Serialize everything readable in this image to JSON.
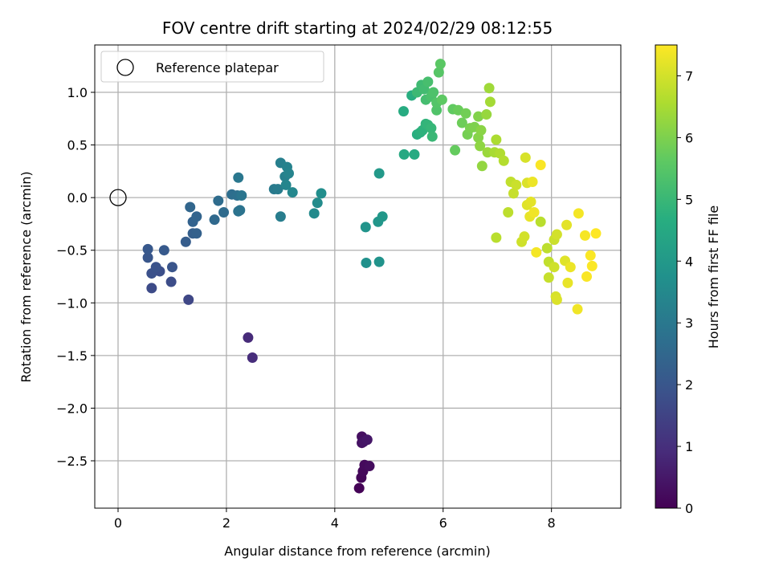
{
  "chart_data": {
    "type": "scatter",
    "title": "FOV centre drift starting at 2024/02/29 08:12:55",
    "xlabel": "Angular distance from reference (arcmin)",
    "ylabel": "Rotation from reference (arcmin)",
    "xlim": [
      -0.43,
      9.28
    ],
    "ylim": [
      -2.95,
      1.45
    ],
    "xticks": [
      0,
      2,
      4,
      6,
      8
    ],
    "xtick_labels": [
      "0",
      "2",
      "4",
      "6",
      "8"
    ],
    "yticks": [
      -2.5,
      -2.0,
      -1.5,
      -1.0,
      -0.5,
      0.0,
      0.5,
      1.0
    ],
    "ytick_labels": [
      "−2.5",
      "−2.0",
      "−1.5",
      "−1.0",
      "−0.5",
      "0.0",
      "0.5",
      "1.0"
    ],
    "grid": true,
    "legend": {
      "placement": "upper-left",
      "entries": [
        "Reference platepar"
      ]
    },
    "reference_point": {
      "x": 0,
      "y": 0,
      "marker": "open-circle",
      "color": "#000000"
    },
    "colorbar": {
      "label": "Hours from first FF file",
      "min": 0,
      "max": 7.5,
      "ticks": [
        0,
        1,
        2,
        3,
        4,
        5,
        6,
        7
      ],
      "tick_labels": [
        "0",
        "1",
        "2",
        "3",
        "4",
        "5",
        "6",
        "7"
      ],
      "colormap": "viridis"
    },
    "points": [
      {
        "x": 4.45,
        "y": -2.76,
        "c": 0.05
      },
      {
        "x": 4.49,
        "y": -2.66,
        "c": 0.1
      },
      {
        "x": 4.52,
        "y": -2.6,
        "c": 0.15
      },
      {
        "x": 4.55,
        "y": -2.54,
        "c": 0.2
      },
      {
        "x": 4.64,
        "y": -2.55,
        "c": 0.25
      },
      {
        "x": 4.5,
        "y": -2.27,
        "c": 0.3
      },
      {
        "x": 4.5,
        "y": -2.33,
        "c": 0.35
      },
      {
        "x": 4.53,
        "y": -2.32,
        "c": 0.4
      },
      {
        "x": 4.6,
        "y": -2.3,
        "c": 0.45
      },
      {
        "x": 2.4,
        "y": -1.33,
        "c": 0.9
      },
      {
        "x": 2.48,
        "y": -1.52,
        "c": 0.95
      },
      {
        "x": 1.3,
        "y": -0.97,
        "c": 1.6
      },
      {
        "x": 0.62,
        "y": -0.86,
        "c": 1.7
      },
      {
        "x": 0.98,
        "y": -0.8,
        "c": 1.75
      },
      {
        "x": 0.77,
        "y": -0.7,
        "c": 1.8
      },
      {
        "x": 0.62,
        "y": -0.72,
        "c": 1.85
      },
      {
        "x": 0.7,
        "y": -0.66,
        "c": 1.9
      },
      {
        "x": 1.0,
        "y": -0.66,
        "c": 1.95
      },
      {
        "x": 0.55,
        "y": -0.57,
        "c": 2.0
      },
      {
        "x": 0.55,
        "y": -0.49,
        "c": 2.05
      },
      {
        "x": 0.85,
        "y": -0.5,
        "c": 2.1
      },
      {
        "x": 1.25,
        "y": -0.42,
        "c": 2.2
      },
      {
        "x": 1.38,
        "y": -0.34,
        "c": 2.25
      },
      {
        "x": 1.45,
        "y": -0.34,
        "c": 2.3
      },
      {
        "x": 1.38,
        "y": -0.23,
        "c": 2.35
      },
      {
        "x": 1.45,
        "y": -0.18,
        "c": 2.4
      },
      {
        "x": 1.33,
        "y": -0.09,
        "c": 2.45
      },
      {
        "x": 1.78,
        "y": -0.21,
        "c": 2.55
      },
      {
        "x": 1.95,
        "y": -0.14,
        "c": 2.6
      },
      {
        "x": 1.85,
        "y": -0.03,
        "c": 2.65
      },
      {
        "x": 2.1,
        "y": 0.03,
        "c": 2.7
      },
      {
        "x": 2.2,
        "y": 0.02,
        "c": 2.75
      },
      {
        "x": 2.22,
        "y": -0.13,
        "c": 2.8
      },
      {
        "x": 2.25,
        "y": -0.12,
        "c": 2.85
      },
      {
        "x": 2.28,
        "y": 0.02,
        "c": 2.9
      },
      {
        "x": 2.22,
        "y": 0.19,
        "c": 2.95
      },
      {
        "x": 2.88,
        "y": 0.08,
        "c": 3.05
      },
      {
        "x": 2.95,
        "y": 0.08,
        "c": 3.1
      },
      {
        "x": 3.0,
        "y": -0.18,
        "c": 3.15
      },
      {
        "x": 3.0,
        "y": 0.33,
        "c": 3.2
      },
      {
        "x": 3.08,
        "y": 0.2,
        "c": 3.25
      },
      {
        "x": 3.12,
        "y": 0.29,
        "c": 3.3
      },
      {
        "x": 3.15,
        "y": 0.23,
        "c": 3.35
      },
      {
        "x": 3.1,
        "y": 0.12,
        "c": 3.4
      },
      {
        "x": 3.22,
        "y": 0.05,
        "c": 3.45
      },
      {
        "x": 3.62,
        "y": -0.15,
        "c": 3.55
      },
      {
        "x": 3.68,
        "y": -0.05,
        "c": 3.6
      },
      {
        "x": 3.75,
        "y": 0.04,
        "c": 3.65
      },
      {
        "x": 4.58,
        "y": -0.62,
        "c": 3.75
      },
      {
        "x": 4.82,
        "y": -0.61,
        "c": 3.8
      },
      {
        "x": 4.57,
        "y": -0.28,
        "c": 3.85
      },
      {
        "x": 4.8,
        "y": -0.23,
        "c": 3.9
      },
      {
        "x": 4.88,
        "y": -0.18,
        "c": 3.95
      },
      {
        "x": 4.82,
        "y": 0.23,
        "c": 4.0
      },
      {
        "x": 5.28,
        "y": 0.41,
        "c": 4.5
      },
      {
        "x": 5.47,
        "y": 0.41,
        "c": 4.55
      },
      {
        "x": 5.27,
        "y": 0.82,
        "c": 4.6
      },
      {
        "x": 5.42,
        "y": 0.97,
        "c": 4.65
      },
      {
        "x": 5.52,
        "y": 0.6,
        "c": 4.7
      },
      {
        "x": 5.58,
        "y": 0.62,
        "c": 4.75
      },
      {
        "x": 5.62,
        "y": 0.64,
        "c": 4.8
      },
      {
        "x": 5.68,
        "y": 0.7,
        "c": 4.85
      },
      {
        "x": 5.72,
        "y": 0.69,
        "c": 4.9
      },
      {
        "x": 5.78,
        "y": 0.66,
        "c": 4.95
      },
      {
        "x": 5.8,
        "y": 0.58,
        "c": 5.0
      },
      {
        "x": 5.52,
        "y": 1.0,
        "c": 5.05
      },
      {
        "x": 5.6,
        "y": 1.07,
        "c": 5.1
      },
      {
        "x": 5.65,
        "y": 1.03,
        "c": 5.15
      },
      {
        "x": 5.68,
        "y": 0.93,
        "c": 5.2
      },
      {
        "x": 5.72,
        "y": 1.1,
        "c": 5.25
      },
      {
        "x": 5.78,
        "y": 0.96,
        "c": 5.3
      },
      {
        "x": 5.82,
        "y": 1.0,
        "c": 5.35
      },
      {
        "x": 5.88,
        "y": 0.83,
        "c": 5.4
      },
      {
        "x": 5.88,
        "y": 0.9,
        "c": 5.45
      },
      {
        "x": 5.92,
        "y": 1.19,
        "c": 5.5
      },
      {
        "x": 5.95,
        "y": 1.27,
        "c": 5.55
      },
      {
        "x": 5.98,
        "y": 0.93,
        "c": 5.6
      },
      {
        "x": 6.18,
        "y": 0.84,
        "c": 5.65
      },
      {
        "x": 6.22,
        "y": 0.45,
        "c": 5.7
      },
      {
        "x": 6.28,
        "y": 0.83,
        "c": 5.75
      },
      {
        "x": 6.35,
        "y": 0.71,
        "c": 5.8
      },
      {
        "x": 6.42,
        "y": 0.8,
        "c": 5.85
      },
      {
        "x": 6.45,
        "y": 0.6,
        "c": 5.9
      },
      {
        "x": 6.5,
        "y": 0.66,
        "c": 5.95
      },
      {
        "x": 6.58,
        "y": 0.67,
        "c": 6.0
      },
      {
        "x": 6.65,
        "y": 0.77,
        "c": 6.05
      },
      {
        "x": 6.65,
        "y": 0.57,
        "c": 6.1
      },
      {
        "x": 6.7,
        "y": 0.64,
        "c": 6.15
      },
      {
        "x": 6.68,
        "y": 0.49,
        "c": 6.2
      },
      {
        "x": 6.72,
        "y": 0.3,
        "c": 6.25
      },
      {
        "x": 6.8,
        "y": 0.79,
        "c": 6.3
      },
      {
        "x": 6.82,
        "y": 0.43,
        "c": 6.35
      },
      {
        "x": 6.85,
        "y": 1.04,
        "c": 6.4
      },
      {
        "x": 6.87,
        "y": 0.91,
        "c": 6.45
      },
      {
        "x": 6.95,
        "y": 0.43,
        "c": 6.5
      },
      {
        "x": 6.98,
        "y": 0.55,
        "c": 6.55
      },
      {
        "x": 7.05,
        "y": 0.42,
        "c": 6.6
      },
      {
        "x": 7.12,
        "y": 0.35,
        "c": 6.65
      },
      {
        "x": 6.98,
        "y": -0.38,
        "c": 6.7
      },
      {
        "x": 7.2,
        "y": -0.14,
        "c": 6.75
      },
      {
        "x": 7.25,
        "y": 0.15,
        "c": 6.8
      },
      {
        "x": 7.3,
        "y": 0.04,
        "c": 6.85
      },
      {
        "x": 7.35,
        "y": 0.12,
        "c": 6.9
      },
      {
        "x": 7.45,
        "y": -0.42,
        "c": 6.95
      },
      {
        "x": 7.5,
        "y": -0.37,
        "c": 7.0
      },
      {
        "x": 7.52,
        "y": 0.38,
        "c": 7.05
      },
      {
        "x": 7.55,
        "y": 0.14,
        "c": 7.1
      },
      {
        "x": 7.55,
        "y": -0.07,
        "c": 7.15
      },
      {
        "x": 7.62,
        "y": -0.04,
        "c": 7.2
      },
      {
        "x": 7.6,
        "y": -0.18,
        "c": 7.25
      },
      {
        "x": 7.65,
        "y": 0.15,
        "c": 7.3
      },
      {
        "x": 7.68,
        "y": -0.14,
        "c": 7.35
      },
      {
        "x": 7.72,
        "y": -0.52,
        "c": 7.4
      },
      {
        "x": 7.8,
        "y": 0.31,
        "c": 7.45
      },
      {
        "x": 7.8,
        "y": -0.23,
        "c": 6.7
      },
      {
        "x": 7.92,
        "y": -0.48,
        "c": 6.75
      },
      {
        "x": 7.95,
        "y": -0.61,
        "c": 6.8
      },
      {
        "x": 7.95,
        "y": -0.76,
        "c": 6.85
      },
      {
        "x": 8.05,
        "y": -0.4,
        "c": 6.9
      },
      {
        "x": 8.05,
        "y": -0.66,
        "c": 6.95
      },
      {
        "x": 8.1,
        "y": -0.35,
        "c": 7.0
      },
      {
        "x": 8.08,
        "y": -0.94,
        "c": 7.05
      },
      {
        "x": 8.1,
        "y": -0.97,
        "c": 7.1
      },
      {
        "x": 8.25,
        "y": -0.6,
        "c": 7.15
      },
      {
        "x": 8.28,
        "y": -0.26,
        "c": 7.2
      },
      {
        "x": 8.3,
        "y": -0.81,
        "c": 7.25
      },
      {
        "x": 8.35,
        "y": -0.66,
        "c": 7.3
      },
      {
        "x": 8.48,
        "y": -1.06,
        "c": 7.35
      },
      {
        "x": 8.5,
        "y": -0.15,
        "c": 7.4
      },
      {
        "x": 8.62,
        "y": -0.36,
        "c": 7.42
      },
      {
        "x": 8.65,
        "y": -0.75,
        "c": 7.45
      },
      {
        "x": 8.72,
        "y": -0.55,
        "c": 7.47
      },
      {
        "x": 8.75,
        "y": -0.65,
        "c": 7.48
      },
      {
        "x": 8.82,
        "y": -0.34,
        "c": 7.5
      }
    ]
  }
}
